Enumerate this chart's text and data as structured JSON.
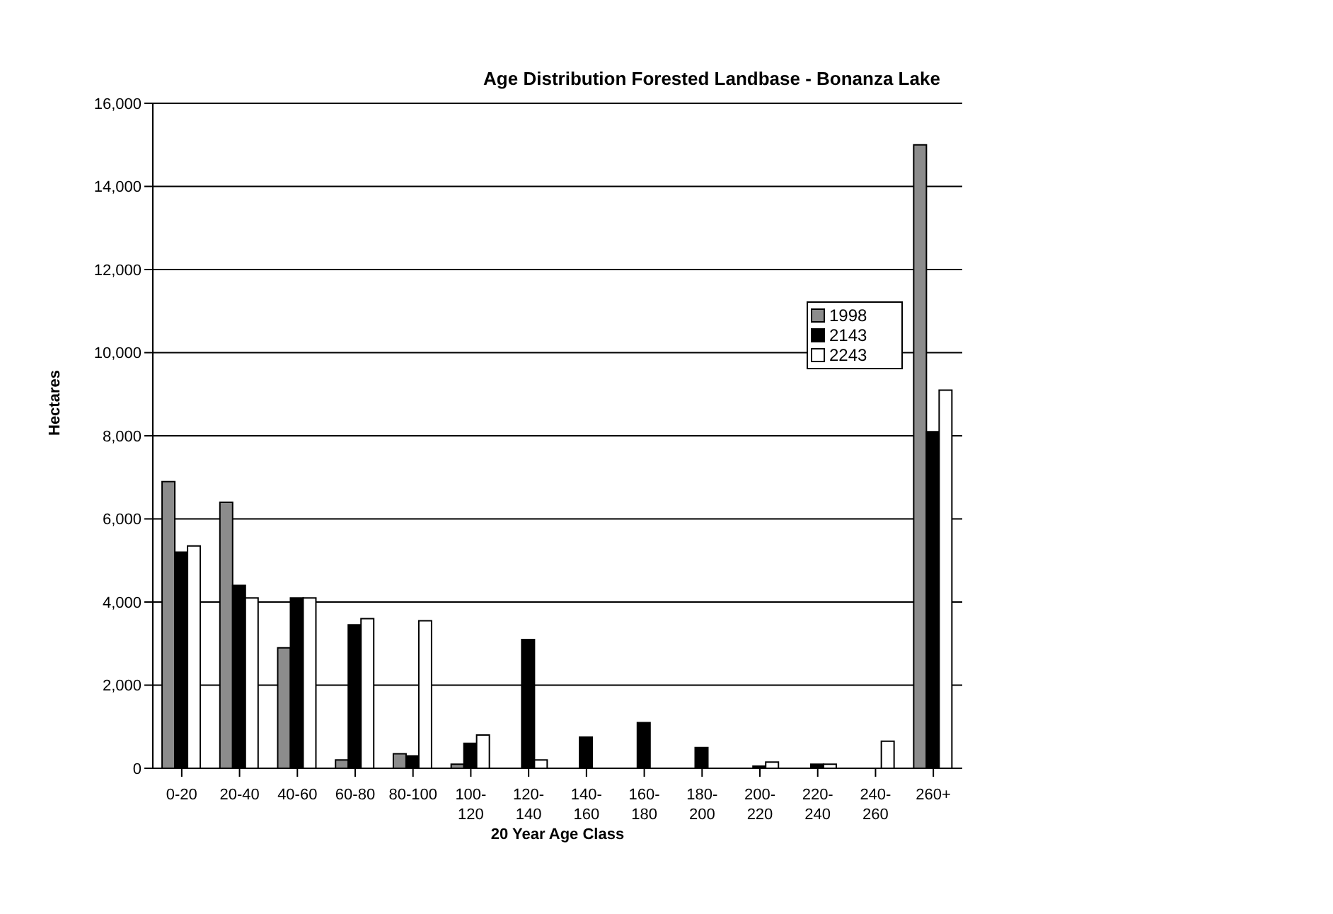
{
  "chart_data": {
    "type": "bar",
    "title": "Age Distribution Forested Landbase - Bonanza Lake",
    "xlabel": "20 Year Age Class",
    "ylabel": "Hectares",
    "categories": [
      "0-20",
      "20-40",
      "40-60",
      "60-80",
      "80-100",
      "100-120",
      "120-140",
      "140-160",
      "160-180",
      "180-200",
      "200-220",
      "220-240",
      "240-260",
      "260+"
    ],
    "series": [
      {
        "name": "1998",
        "color": "#8c8c8c",
        "values": [
          6900,
          6400,
          2900,
          200,
          350,
          100,
          0,
          0,
          0,
          0,
          0,
          0,
          0,
          15000
        ]
      },
      {
        "name": "2143",
        "color": "#000000",
        "values": [
          5200,
          4400,
          4100,
          3450,
          300,
          600,
          3100,
          750,
          1100,
          500,
          50,
          100,
          0,
          8100
        ]
      },
      {
        "name": "2243",
        "color": "#ffffff",
        "values": [
          5350,
          4100,
          4100,
          3600,
          3550,
          800,
          200,
          0,
          0,
          0,
          150,
          100,
          650,
          9100
        ]
      }
    ],
    "ylim": [
      0,
      16000
    ],
    "yticks": [
      {
        "value": 0,
        "label": "0"
      },
      {
        "value": 2000,
        "label": "2,000"
      },
      {
        "value": 4000,
        "label": "4,000"
      },
      {
        "value": 6000,
        "label": "6,000"
      },
      {
        "value": 8000,
        "label": "8,000"
      },
      {
        "value": 10000,
        "label": "10,000"
      },
      {
        "value": 12000,
        "label": "12,000"
      },
      {
        "value": 14000,
        "label": "14,000"
      },
      {
        "value": 16000,
        "label": "16,000"
      }
    ],
    "grid": "y",
    "legend": "top right"
  }
}
